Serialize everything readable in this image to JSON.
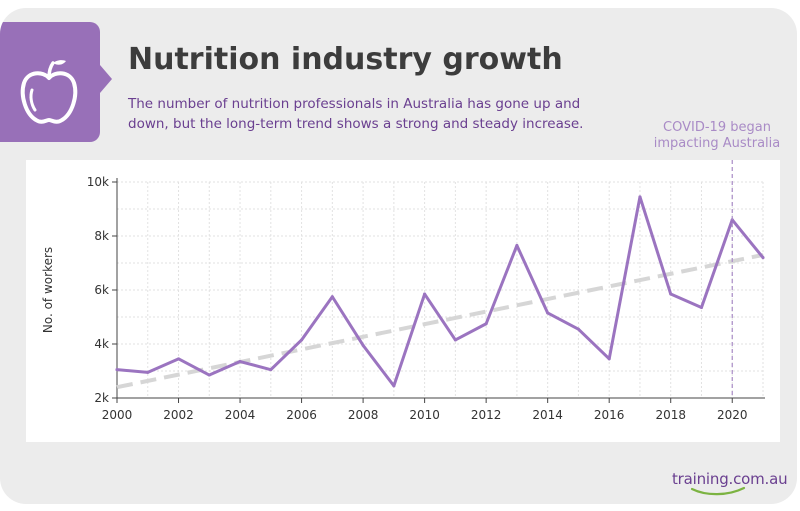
{
  "header": {
    "title": "Nutrition industry growth",
    "subtitle": "The number of nutrition professionals in Australia has gone up and down, but the long-term trend shows a strong and steady increase."
  },
  "icon": {
    "name": "apple-icon"
  },
  "brand": {
    "logo_text": "training.com.au"
  },
  "colors": {
    "accent": "#9870b8",
    "line": "#9b74c0",
    "trend": "#d6d6d6",
    "annotation": "#a98bc6",
    "brand_green": "#7cb342"
  },
  "chart_data": {
    "type": "line",
    "title": "",
    "xlabel": "",
    "ylabel": "No. of workers",
    "x": [
      2000,
      2001,
      2002,
      2003,
      2004,
      2005,
      2006,
      2007,
      2008,
      2009,
      2010,
      2011,
      2012,
      2013,
      2014,
      2015,
      2016,
      2017,
      2018,
      2019,
      2020,
      2021
    ],
    "series": [
      {
        "values": [
          3050,
          2950,
          3450,
          2850,
          3350,
          3050,
          4150,
          5750,
          3950,
          2450,
          5850,
          4150,
          4750,
          7650,
          5150,
          4550,
          3450,
          9450,
          5850,
          5350,
          8600,
          7200
        ]
      }
    ],
    "trendline": {
      "style": "dashed",
      "from": {
        "x": 2000,
        "y": 2400
      },
      "to": {
        "x": 2021,
        "y": 7300
      }
    },
    "xlim": [
      2000,
      2021
    ],
    "ylim": [
      2000,
      10000
    ],
    "x_ticks": [
      2000,
      2002,
      2004,
      2006,
      2008,
      2010,
      2012,
      2014,
      2016,
      2018,
      2020
    ],
    "x_tick_labels": [
      "2000",
      "2002",
      "2004",
      "2006",
      "2008",
      "2010",
      "2012",
      "2014",
      "2016",
      "2018",
      "2020"
    ],
    "y_ticks": [
      2000,
      4000,
      6000,
      8000,
      10000
    ],
    "y_tick_labels": [
      "2k",
      "4k",
      "6k",
      "8k",
      "10k"
    ],
    "grid": true,
    "annotations": [
      {
        "x": 2020,
        "text": "COVID-19 began impacting Australia",
        "style": "dashed vertical line"
      }
    ]
  }
}
